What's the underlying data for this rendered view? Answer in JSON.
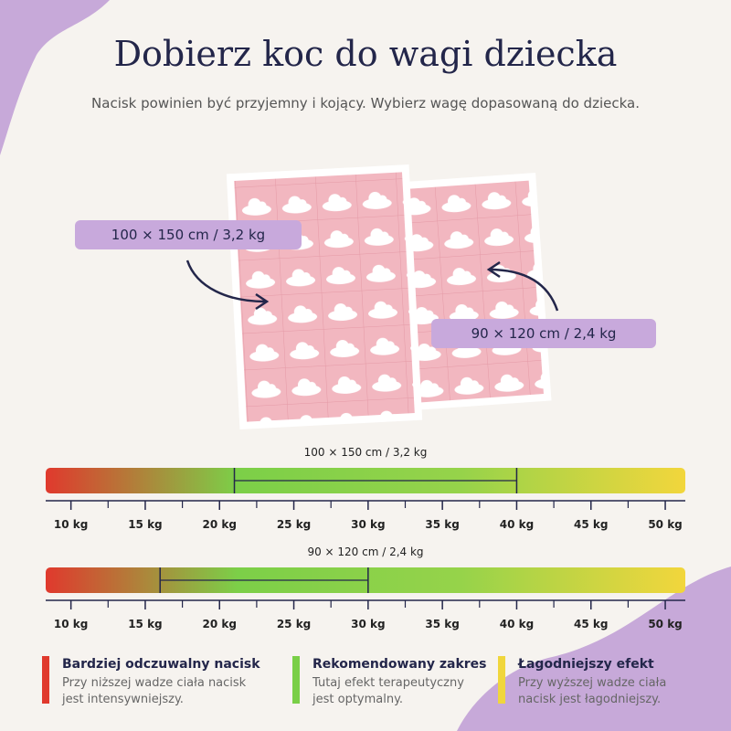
{
  "header": {
    "title": "Dobierz koc do wagi dziecka",
    "subtitle": "Nacisk powinien być przyjemny i kojący. Wybierz wagę dopasowaną do dziecka."
  },
  "blankets": [
    {
      "label": "100 × 150 cm / 3,2 kg"
    },
    {
      "label": "90 × 120 cm / 2,4 kg"
    }
  ],
  "axis": {
    "lim": [
      8.3,
      51.35
    ],
    "ticks": [
      {
        "value": 10,
        "label": "10 kg"
      },
      {
        "value": 15,
        "label": "15 kg"
      },
      {
        "value": 20,
        "label": "20 kg"
      },
      {
        "value": 25,
        "label": "25 kg"
      },
      {
        "value": 30,
        "label": "30 kg"
      },
      {
        "value": 35,
        "label": "35 kg"
      },
      {
        "value": 40,
        "label": "40 kg"
      },
      {
        "value": 45,
        "label": "45 kg"
      },
      {
        "value": 50,
        "label": "50 kg"
      }
    ],
    "minor_ticks": [
      12.5,
      17.5,
      22.5,
      27.5,
      32.5,
      37.5,
      42.5,
      47.5
    ]
  },
  "scales": [
    {
      "title": "100 × 150 cm / 3,2 kg",
      "range": [
        21,
        40
      ]
    },
    {
      "title": "90 × 120 cm / 2,4 kg",
      "range": [
        16,
        30
      ]
    }
  ],
  "legend": [
    {
      "color": "#e0392d",
      "title": "Bardziej odczuwalny nacisk",
      "lines": [
        "Przy niższej wadze ciała nacisk",
        "jest intensywniejszy."
      ]
    },
    {
      "color": "#79cf47",
      "title": "Rekomendowany zakres",
      "lines": [
        "Tutaj efekt terapeutyczny",
        "jest optymalny."
      ]
    },
    {
      "color": "#f0d63c",
      "title": "Łagodniejszy efekt",
      "lines": [
        "Przy wyższej wadze ciała",
        "nacisk jest łagodniejszy."
      ]
    }
  ]
}
